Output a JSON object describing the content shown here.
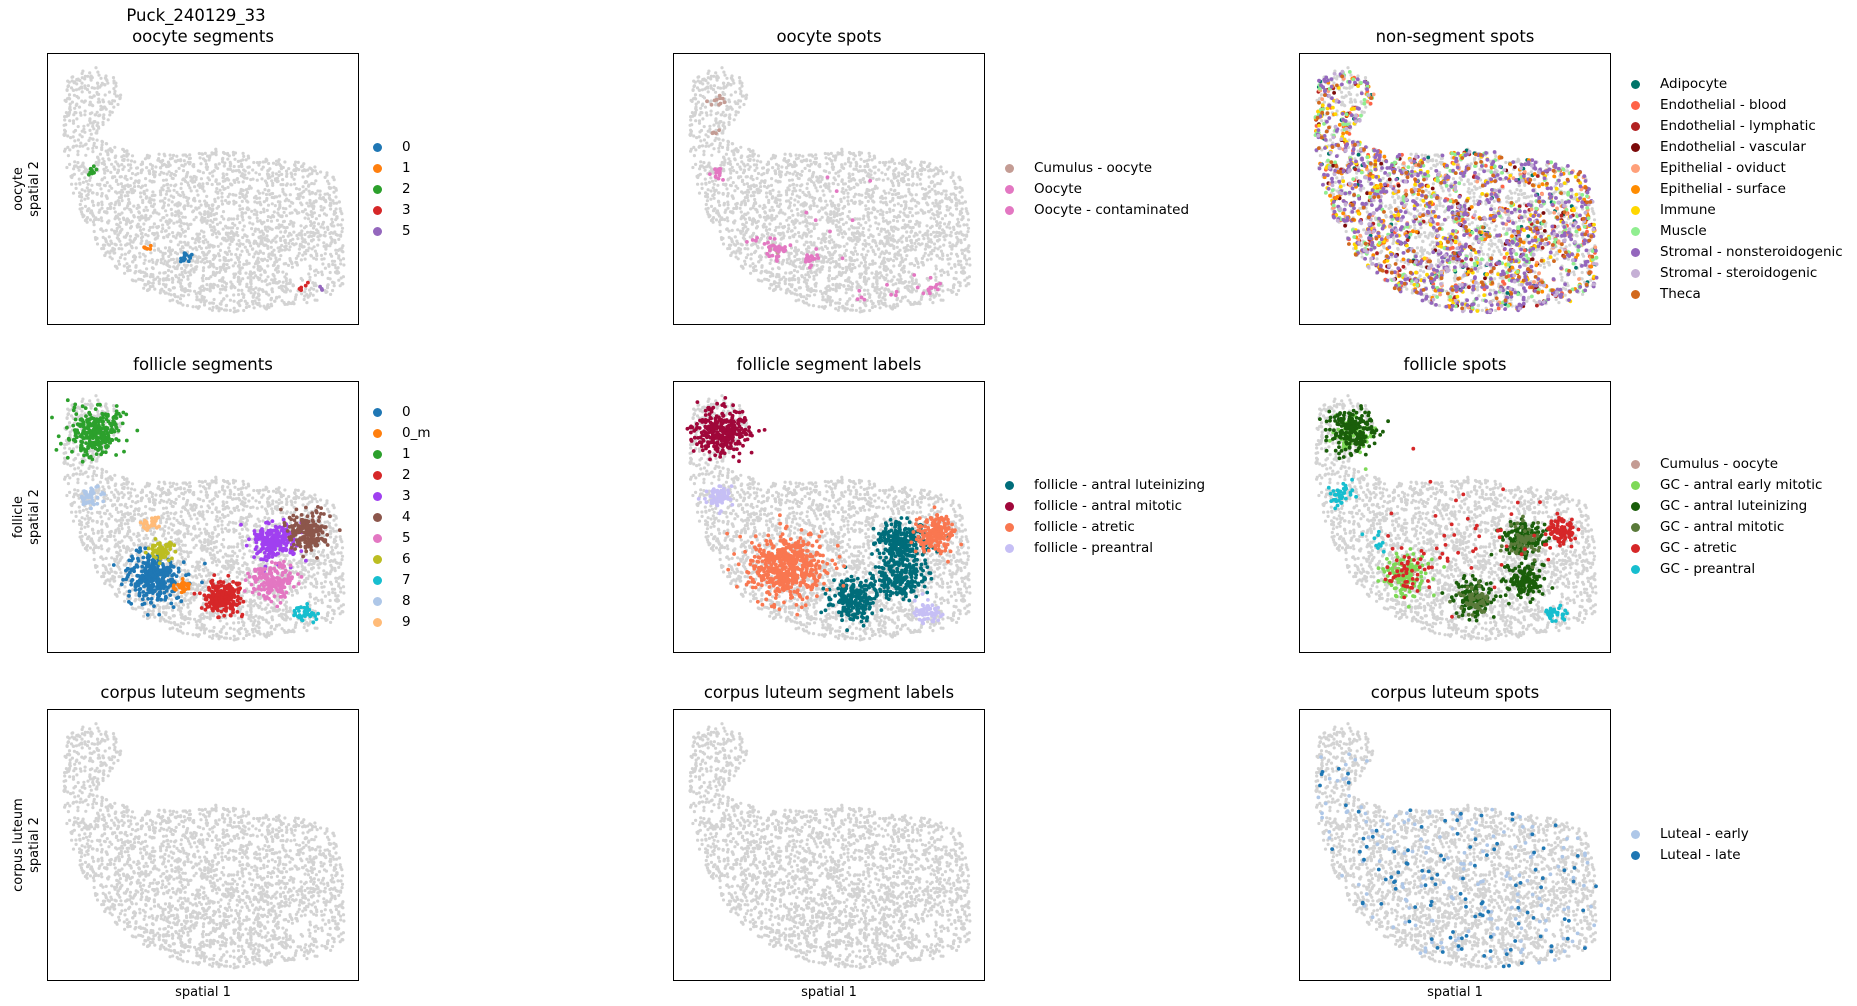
{
  "figure": {
    "sample_id": "Puck_240129_33"
  },
  "chart_data": [
    {
      "type": "scatter",
      "title": "oocyte segments",
      "ylabel": "oocyte\nspatial 2",
      "xlabel": "",
      "legend_placement": "right",
      "background_color": "#d3d3d3",
      "series": [
        {
          "name": "0",
          "color": "#1f77b4",
          "clusters": [
            {
              "cx": 0.445,
              "cy": 0.755,
              "r": 0.02,
              "n": 14
            }
          ]
        },
        {
          "name": "1",
          "color": "#ff7f0e",
          "clusters": [
            {
              "cx": 0.325,
              "cy": 0.715,
              "r": 0.012,
              "n": 6
            }
          ]
        },
        {
          "name": "2",
          "color": "#2ca02c",
          "clusters": [
            {
              "cx": 0.14,
              "cy": 0.435,
              "r": 0.014,
              "n": 9
            }
          ]
        },
        {
          "name": "3",
          "color": "#d62728",
          "clusters": [
            {
              "cx": 0.825,
              "cy": 0.865,
              "r": 0.02,
              "n": 6
            }
          ]
        },
        {
          "name": "5",
          "color": "#9467bd",
          "clusters": [
            {
              "cx": 0.88,
              "cy": 0.87,
              "r": 0.008,
              "n": 3
            }
          ]
        }
      ]
    },
    {
      "type": "scatter",
      "title": "oocyte spots",
      "ylabel": "",
      "xlabel": "",
      "legend_placement": "right",
      "background_color": "#d3d3d3",
      "series": [
        {
          "name": "Cumulus - oocyte",
          "color": "#c49c94",
          "clusters": [
            {
              "cx": 0.135,
              "cy": 0.17,
              "r": 0.03,
              "n": 10
            },
            {
              "cx": 0.12,
              "cy": 0.3,
              "r": 0.02,
              "n": 4
            },
            {
              "cx": 0.33,
              "cy": 0.72,
              "r": 0.025,
              "n": 6
            }
          ]
        },
        {
          "name": "Oocyte",
          "color": "#e377c2",
          "clusters": [
            {
              "cx": 0.14,
              "cy": 0.44,
              "r": 0.02,
              "n": 16
            },
            {
              "cx": 0.325,
              "cy": 0.72,
              "r": 0.035,
              "n": 30
            },
            {
              "cx": 0.44,
              "cy": 0.755,
              "r": 0.022,
              "n": 22
            },
            {
              "cx": 0.825,
              "cy": 0.86,
              "r": 0.028,
              "n": 14
            },
            {
              "cx": 0.6,
              "cy": 0.9,
              "r": 0.02,
              "n": 5
            },
            {
              "cx": 0.51,
              "cy": 0.58,
              "r": 0.15,
              "n": 8
            }
          ]
        },
        {
          "name": "Oocyte - contaminated",
          "color": "#e377c2",
          "clusters": [
            {
              "cx": 0.25,
              "cy": 0.68,
              "r": 0.02,
              "n": 4
            },
            {
              "cx": 0.7,
              "cy": 0.88,
              "r": 0.02,
              "n": 4
            }
          ]
        }
      ]
    },
    {
      "type": "scatter",
      "title": "non-segment spots",
      "ylabel": "",
      "xlabel": "",
      "legend_placement": "right",
      "background_color": "#d3d3d3",
      "series": [
        {
          "name": "Adipocyte",
          "color": "#00756a",
          "density": 0.04
        },
        {
          "name": "Endothelial - blood",
          "color": "#ff6347",
          "density": 0.06
        },
        {
          "name": "Endothelial - lymphatic",
          "color": "#b22222",
          "density": 0.05
        },
        {
          "name": "Endothelial - vascular",
          "color": "#7b0a0a",
          "density": 0.03
        },
        {
          "name": "Epithelial - oviduct",
          "color": "#ffa07a",
          "density": 0.05
        },
        {
          "name": "Epithelial - surface",
          "color": "#ff8c00",
          "density": 0.1
        },
        {
          "name": "Immune",
          "color": "#ffd700",
          "density": 0.08
        },
        {
          "name": "Muscle",
          "color": "#90ee90",
          "density": 0.14
        },
        {
          "name": "Stromal - nonsteroidogenic",
          "color": "#9467bd",
          "density": 0.3
        },
        {
          "name": "Stromal - steroidogenic",
          "color": "#c5b0d5",
          "density": 0.08
        },
        {
          "name": "Theca",
          "color": "#d2691e",
          "density": 0.07
        }
      ]
    },
    {
      "type": "scatter",
      "title": "follicle segments",
      "ylabel": "follicle\nspatial 2",
      "xlabel": "",
      "legend_placement": "right",
      "background_color": "#d3d3d3",
      "series": [
        {
          "name": "0",
          "color": "#1f77b4",
          "clusters": [
            {
              "cx": 0.34,
              "cy": 0.725,
              "r": 0.085,
              "n": 320
            }
          ]
        },
        {
          "name": "0_m",
          "color": "#ff7f0e",
          "clusters": [
            {
              "cx": 0.43,
              "cy": 0.76,
              "r": 0.025,
              "n": 30
            }
          ]
        },
        {
          "name": "1",
          "color": "#2ca02c",
          "clusters": [
            {
              "cx": 0.155,
              "cy": 0.185,
              "r": 0.075,
              "n": 300
            }
          ]
        },
        {
          "name": "2",
          "color": "#d62728",
          "clusters": [
            {
              "cx": 0.56,
              "cy": 0.8,
              "r": 0.06,
              "n": 220
            }
          ]
        },
        {
          "name": "3",
          "color": "#a040f0",
          "clusters": [
            {
              "cx": 0.73,
              "cy": 0.59,
              "r": 0.065,
              "n": 220
            }
          ]
        },
        {
          "name": "4",
          "color": "#8c564b",
          "clusters": [
            {
              "cx": 0.84,
              "cy": 0.555,
              "r": 0.06,
              "n": 200
            }
          ]
        },
        {
          "name": "5",
          "color": "#e377c2",
          "clusters": [
            {
              "cx": 0.725,
              "cy": 0.735,
              "r": 0.06,
              "n": 180
            }
          ]
        },
        {
          "name": "6",
          "color": "#bcbd22",
          "clusters": [
            {
              "cx": 0.37,
              "cy": 0.62,
              "r": 0.04,
              "n": 60
            }
          ]
        },
        {
          "name": "7",
          "color": "#17becf",
          "clusters": [
            {
              "cx": 0.825,
              "cy": 0.86,
              "r": 0.03,
              "n": 40
            }
          ]
        },
        {
          "name": "8",
          "color": "#aec7e8",
          "clusters": [
            {
              "cx": 0.135,
              "cy": 0.42,
              "r": 0.035,
              "n": 45
            }
          ]
        },
        {
          "name": "9",
          "color": "#ffbb78",
          "clusters": [
            {
              "cx": 0.33,
              "cy": 0.52,
              "r": 0.025,
              "n": 30
            }
          ]
        }
      ]
    },
    {
      "type": "scatter",
      "title": "follicle segment labels",
      "ylabel": "",
      "xlabel": "",
      "legend_placement": "right",
      "background_color": "#d3d3d3",
      "series": [
        {
          "name": "follicle - antral luteinizing",
          "color": "#006d7a",
          "clusters": [
            {
              "cx": 0.73,
              "cy": 0.59,
              "r": 0.07,
              "n": 260
            },
            {
              "cx": 0.73,
              "cy": 0.73,
              "r": 0.065,
              "n": 220
            },
            {
              "cx": 0.58,
              "cy": 0.8,
              "r": 0.07,
              "n": 240
            }
          ]
        },
        {
          "name": "follicle - antral mitotic",
          "color": "#a0073a",
          "clusters": [
            {
              "cx": 0.155,
              "cy": 0.185,
              "r": 0.08,
              "n": 320
            }
          ]
        },
        {
          "name": "follicle - atretic",
          "color": "#f97750",
          "clusters": [
            {
              "cx": 0.365,
              "cy": 0.68,
              "r": 0.11,
              "n": 520
            },
            {
              "cx": 0.84,
              "cy": 0.56,
              "r": 0.055,
              "n": 200
            }
          ]
        },
        {
          "name": "follicle - preantral",
          "color": "#c6bff5",
          "clusters": [
            {
              "cx": 0.14,
              "cy": 0.42,
              "r": 0.04,
              "n": 70
            },
            {
              "cx": 0.82,
              "cy": 0.855,
              "r": 0.04,
              "n": 60
            }
          ]
        }
      ]
    },
    {
      "type": "scatter",
      "title": "follicle spots",
      "ylabel": "",
      "xlabel": "",
      "legend_placement": "right",
      "background_color": "#d3d3d3",
      "series": [
        {
          "name": "Cumulus - oocyte",
          "color": "#c49c94",
          "clusters": [
            {
              "cx": 0.33,
              "cy": 0.72,
              "r": 0.05,
              "n": 20
            }
          ]
        },
        {
          "name": "GC - antral early mitotic",
          "color": "#7ed957",
          "clusters": [
            {
              "cx": 0.34,
              "cy": 0.72,
              "r": 0.07,
              "n": 140
            },
            {
              "cx": 0.17,
              "cy": 0.19,
              "r": 0.06,
              "n": 60
            }
          ]
        },
        {
          "name": "GC - antral luteinizing",
          "color": "#1a5e0a",
          "clusters": [
            {
              "cx": 0.165,
              "cy": 0.18,
              "r": 0.07,
              "n": 200
            },
            {
              "cx": 0.72,
              "cy": 0.58,
              "r": 0.06,
              "n": 160
            },
            {
              "cx": 0.725,
              "cy": 0.735,
              "r": 0.055,
              "n": 140
            },
            {
              "cx": 0.555,
              "cy": 0.8,
              "r": 0.055,
              "n": 150
            }
          ]
        },
        {
          "name": "GC - antral mitotic",
          "color": "#5a7a3a",
          "clusters": [
            {
              "cx": 0.56,
              "cy": 0.805,
              "r": 0.05,
              "n": 60
            },
            {
              "cx": 0.73,
              "cy": 0.585,
              "r": 0.055,
              "n": 60
            }
          ]
        },
        {
          "name": "GC - atretic",
          "color": "#d62728",
          "clusters": [
            {
              "cx": 0.84,
              "cy": 0.555,
              "r": 0.05,
              "n": 110
            },
            {
              "cx": 0.35,
              "cy": 0.7,
              "r": 0.08,
              "n": 50
            },
            {
              "cx": 0.52,
              "cy": 0.56,
              "r": 0.2,
              "n": 40
            }
          ]
        },
        {
          "name": "GC - preantral",
          "color": "#17becf",
          "clusters": [
            {
              "cx": 0.13,
              "cy": 0.42,
              "r": 0.04,
              "n": 40
            },
            {
              "cx": 0.825,
              "cy": 0.86,
              "r": 0.03,
              "n": 30
            },
            {
              "cx": 0.25,
              "cy": 0.6,
              "r": 0.05,
              "n": 10
            }
          ]
        }
      ]
    },
    {
      "type": "scatter",
      "title": "corpus luteum segments",
      "ylabel": "corpus luteum\nspatial 2",
      "xlabel": "spatial 1",
      "legend_placement": "none",
      "background_color": "#d3d3d3",
      "series": []
    },
    {
      "type": "scatter",
      "title": "corpus luteum segment labels",
      "ylabel": "",
      "xlabel": "spatial 1",
      "legend_placement": "none",
      "background_color": "#d3d3d3",
      "series": []
    },
    {
      "type": "scatter",
      "title": "corpus luteum spots",
      "ylabel": "",
      "xlabel": "spatial 1",
      "legend_placement": "right",
      "background_color": "#d3d3d3",
      "series": [
        {
          "name": "Luteal - early",
          "color": "#aec7e8",
          "scatter_n": 160
        },
        {
          "name": "Luteal - late",
          "color": "#1f77b4",
          "scatter_n": 110
        }
      ]
    }
  ]
}
